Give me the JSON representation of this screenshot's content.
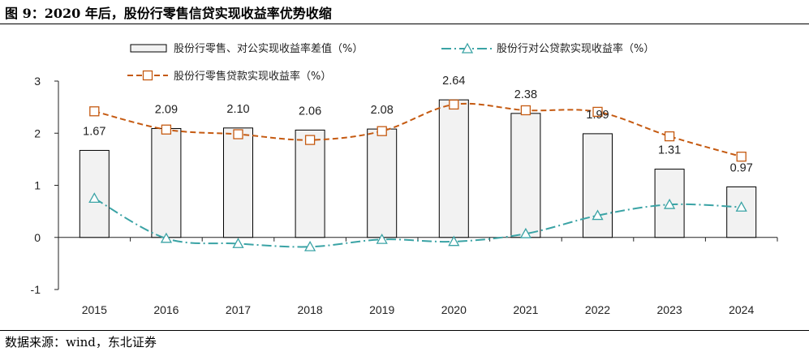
{
  "header": {
    "title": "图 9：2020 年后，股份行零售信贷实现收益率优势收缩"
  },
  "footer": {
    "source": "数据来源：wind，东北证券"
  },
  "chart_data": {
    "type": "bar",
    "categories": [
      "2015",
      "2016",
      "2017",
      "2018",
      "2019",
      "2020",
      "2021",
      "2022",
      "2023",
      "2024"
    ],
    "ylim": [
      -1,
      3
    ],
    "yticks": [
      -1,
      0,
      1,
      2,
      3
    ],
    "legend_position": "top",
    "grid": false,
    "series": [
      {
        "name": "股份行零售、对公实现收益率差值（%）",
        "kind": "bar",
        "values": [
          1.67,
          2.09,
          2.1,
          2.06,
          2.08,
          2.64,
          2.38,
          1.99,
          1.31,
          0.97
        ],
        "labels": [
          "1.67",
          "2.09",
          "2.10",
          "2.06",
          "2.08",
          "2.64",
          "2.38",
          "1.99",
          "1.31",
          "0.97"
        ],
        "color": "#f2f2f2",
        "stroke": "#000000"
      },
      {
        "name": "股份行对公贷款实现收益率（%）",
        "kind": "line",
        "values": [
          0.75,
          -0.02,
          -0.12,
          -0.18,
          -0.04,
          -0.08,
          0.07,
          0.42,
          0.63,
          0.58
        ],
        "color": "#3aa3a5",
        "marker": "triangle",
        "dash": "dashdot"
      },
      {
        "name": "股份行零售贷款实现收益率（%）",
        "kind": "line",
        "values": [
          2.42,
          2.07,
          1.98,
          1.87,
          2.04,
          2.55,
          2.44,
          2.41,
          1.94,
          1.55
        ],
        "color": "#c55a11",
        "marker": "square",
        "dash": "dash"
      }
    ]
  }
}
